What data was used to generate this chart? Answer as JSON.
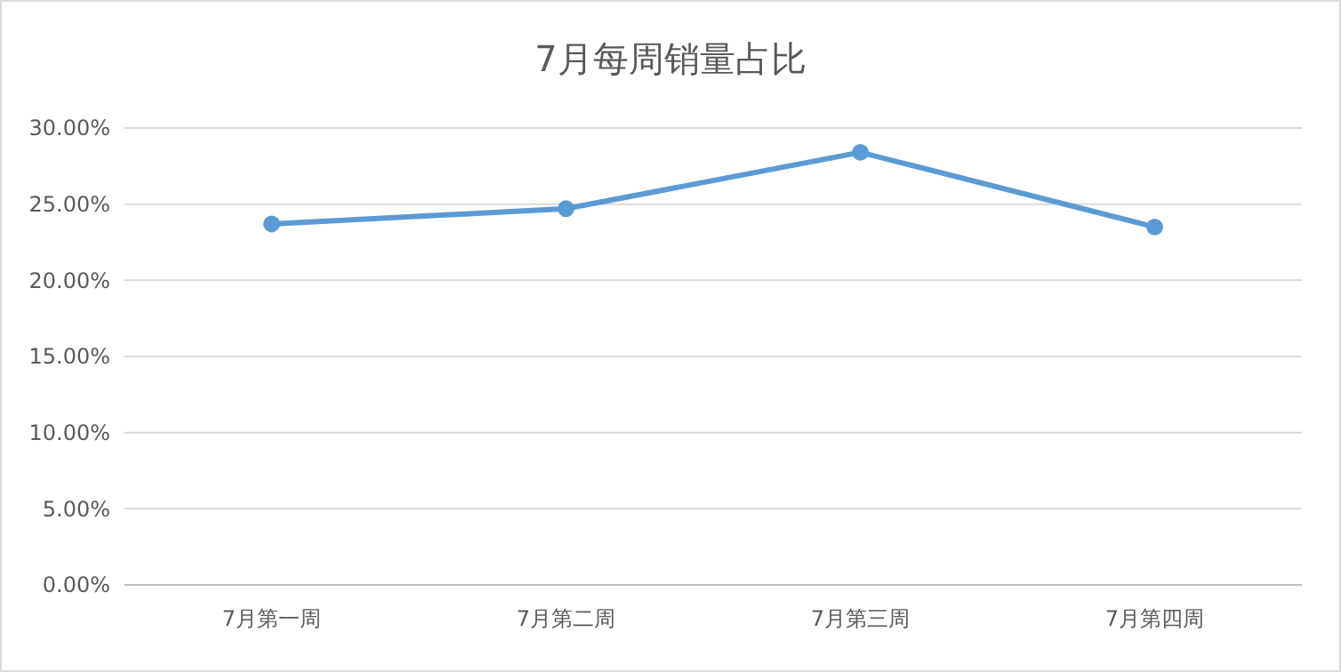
{
  "chart_data": {
    "type": "line",
    "title": "7月每周销量占比",
    "categories": [
      "7月第一周",
      "7月第二周",
      "7月第三周",
      "7月第四周"
    ],
    "series": [
      {
        "color": "#5b9bd5",
        "values": [
          23.7,
          24.7,
          28.4,
          23.5
        ]
      }
    ],
    "ylim": [
      0,
      30
    ],
    "yticks": [
      {
        "value": 0,
        "label": "0.00%"
      },
      {
        "value": 5,
        "label": "5.00%"
      },
      {
        "value": 10,
        "label": "10.00%"
      },
      {
        "value": 15,
        "label": "15.00%"
      },
      {
        "value": 20,
        "label": "20.00%"
      },
      {
        "value": 25,
        "label": "25.00%"
      },
      {
        "value": 30,
        "label": "30.00%"
      }
    ],
    "grid": "y",
    "marker": "circle",
    "line_style": "solid"
  }
}
